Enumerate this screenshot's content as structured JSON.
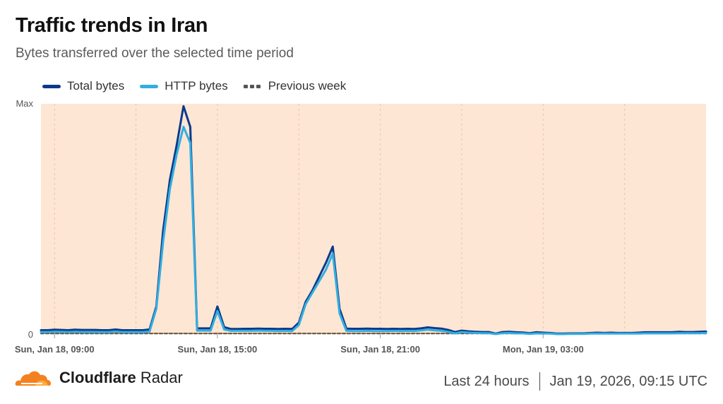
{
  "header": {
    "title": "Traffic trends in Iran",
    "subtitle": "Bytes transferred over the selected time period"
  },
  "legend": {
    "total_label": "Total bytes",
    "http_label": "HTTP bytes",
    "prev_label": "Previous week"
  },
  "colors": {
    "total": "#0b3a8c",
    "http": "#33aee0",
    "previous": "#555555",
    "plot_bg": "#fde6d4",
    "baseline": "#f3a04b",
    "grid": "#e6c6ad"
  },
  "chart_data": {
    "type": "line",
    "title": "Traffic trends in Iran",
    "subtitle": "Bytes transferred over the selected time period",
    "ylabel": "",
    "xlabel": "",
    "y_tick_labels": [
      "0",
      "Max"
    ],
    "ylim": [
      0,
      100
    ],
    "x_range_hours": [
      0,
      24.5
    ],
    "x_tick_positions_hours": [
      0.5,
      6.5,
      12.5,
      18.5
    ],
    "x_tick_labels": [
      "Sun, Jan 18, 09:00",
      "Sun, Jan 18, 15:00",
      "Sun, Jan 18, 21:00",
      "Mon, Jan 19, 03:00"
    ],
    "grid": true,
    "legend_position": "top-left",
    "series": [
      {
        "name": "Total bytes",
        "x": [
          0,
          0.25,
          0.5,
          0.75,
          1,
          1.25,
          1.5,
          1.75,
          2,
          2.25,
          2.5,
          2.75,
          3,
          3.25,
          3.5,
          3.75,
          4,
          4.25,
          4.5,
          4.75,
          5,
          5.25,
          5.5,
          5.75,
          6,
          6.25,
          6.5,
          6.75,
          7,
          7.25,
          7.5,
          7.75,
          8,
          8.25,
          8.5,
          8.75,
          9,
          9.25,
          9.5,
          9.75,
          10,
          10.25,
          10.5,
          10.75,
          11,
          11.25,
          11.5,
          11.75,
          12,
          12.25,
          12.5,
          12.75,
          13,
          13.25,
          13.5,
          13.75,
          14,
          14.25,
          14.5,
          14.75,
          15,
          15.25,
          15.5,
          15.75,
          16,
          16.25,
          16.5,
          16.75,
          17,
          17.25,
          17.5,
          17.75,
          18,
          18.25,
          18.5,
          18.75,
          19,
          19.25,
          19.5,
          19.75,
          20,
          20.25,
          20.5,
          20.75,
          21,
          21.25,
          21.5,
          21.75,
          22,
          22.25,
          22.5,
          22.75,
          23,
          23.25,
          23.5,
          23.75,
          24,
          24.25,
          24.5
        ],
        "values": [
          1.7,
          1.7,
          1.9,
          1.8,
          1.7,
          1.9,
          1.8,
          1.8,
          1.8,
          1.7,
          1.7,
          2.0,
          1.7,
          1.7,
          1.7,
          1.7,
          2.0,
          12,
          45,
          67,
          82,
          99,
          90,
          2.5,
          2.5,
          2.5,
          12,
          3,
          2.2,
          2.2,
          2.3,
          2.3,
          2.4,
          2.3,
          2.3,
          2.2,
          2.3,
          2.2,
          5.0,
          14,
          19,
          25,
          31,
          38,
          11,
          2.4,
          2.3,
          2.3,
          2.4,
          2.3,
          2.3,
          2.2,
          2.3,
          2.2,
          2.3,
          2.2,
          2.5,
          2.9,
          2.6,
          2.4,
          1.8,
          0.9,
          1.5,
          1.2,
          1.0,
          0.9,
          0.9,
          0.2,
          0.9,
          1.0,
          0.8,
          0.7,
          0.4,
          0.8,
          0.6,
          0.5,
          0.2,
          0.2,
          0.3,
          0.3,
          0.3,
          0.5,
          0.6,
          0.5,
          0.6,
          0.5,
          0.5,
          0.5,
          0.6,
          0.8,
          0.8,
          0.8,
          0.8,
          0.8,
          1.0,
          0.9,
          0.9,
          1.0,
          1.1
        ],
        "color": "#0b3a8c"
      },
      {
        "name": "HTTP bytes",
        "x": [
          0,
          0.25,
          0.5,
          0.75,
          1,
          1.25,
          1.5,
          1.75,
          2,
          2.25,
          2.5,
          2.75,
          3,
          3.25,
          3.5,
          3.75,
          4,
          4.25,
          4.5,
          4.75,
          5,
          5.25,
          5.5,
          5.75,
          6,
          6.25,
          6.5,
          6.75,
          7,
          7.25,
          7.5,
          7.75,
          8,
          8.25,
          8.5,
          8.75,
          9,
          9.25,
          9.5,
          9.75,
          10,
          10.25,
          10.5,
          10.75,
          11,
          11.25,
          11.5,
          11.75,
          12,
          12.25,
          12.5,
          12.75,
          13,
          13.25,
          13.5,
          13.75,
          14,
          14.25,
          14.5,
          14.75,
          15,
          15.25,
          15.5,
          15.75,
          16,
          16.25,
          16.5,
          16.75,
          17,
          17.25,
          17.5,
          17.75,
          18,
          18.25,
          18.5,
          18.75,
          19,
          19.25,
          19.5,
          19.75,
          20,
          20.25,
          20.5,
          20.75,
          21,
          21.25,
          21.5,
          21.75,
          22,
          22.25,
          22.5,
          22.75,
          23,
          23.25,
          23.5,
          23.75,
          24,
          24.25,
          24.5
        ],
        "values": [
          0.9,
          0.9,
          1.0,
          1.0,
          0.9,
          1.0,
          0.9,
          0.9,
          0.9,
          0.9,
          0.9,
          1.1,
          0.9,
          0.9,
          0.9,
          0.9,
          1.1,
          11,
          40,
          63,
          78,
          90,
          83,
          1.5,
          1.5,
          1.5,
          10,
          2,
          1.4,
          1.4,
          1.4,
          1.4,
          1.5,
          1.4,
          1.4,
          1.3,
          1.4,
          1.3,
          4.0,
          13,
          18,
          23,
          28,
          35,
          9,
          1.4,
          1.3,
          1.3,
          1.4,
          1.3,
          1.3,
          1.3,
          1.4,
          1.3,
          1.4,
          1.3,
          1.6,
          1.9,
          1.6,
          1.4,
          1.0,
          0.3,
          0.9,
          0.6,
          0.5,
          0.4,
          0.4,
          0.0,
          0.4,
          0.5,
          0.3,
          0.3,
          0.1,
          0.3,
          0.2,
          0.2,
          0.0,
          0.0,
          0.1,
          0.1,
          0.1,
          0.2,
          0.2,
          0.2,
          0.2,
          0.2,
          0.2,
          0.2,
          0.2,
          0.3,
          0.3,
          0.3,
          0.3,
          0.3,
          0.4,
          0.4,
          0.4,
          0.4,
          0.5
        ],
        "color": "#33aee0"
      },
      {
        "name": "Previous week",
        "x": [
          0,
          24.5
        ],
        "values": [
          0.2,
          0.2
        ],
        "color": "#555555",
        "dashed": true
      }
    ]
  },
  "footer": {
    "brand_bold": "Cloudflare",
    "brand_rest": "Radar",
    "period": "Last 24 hours",
    "timestamp": "Jan 19, 2026, 09:15 UTC"
  }
}
